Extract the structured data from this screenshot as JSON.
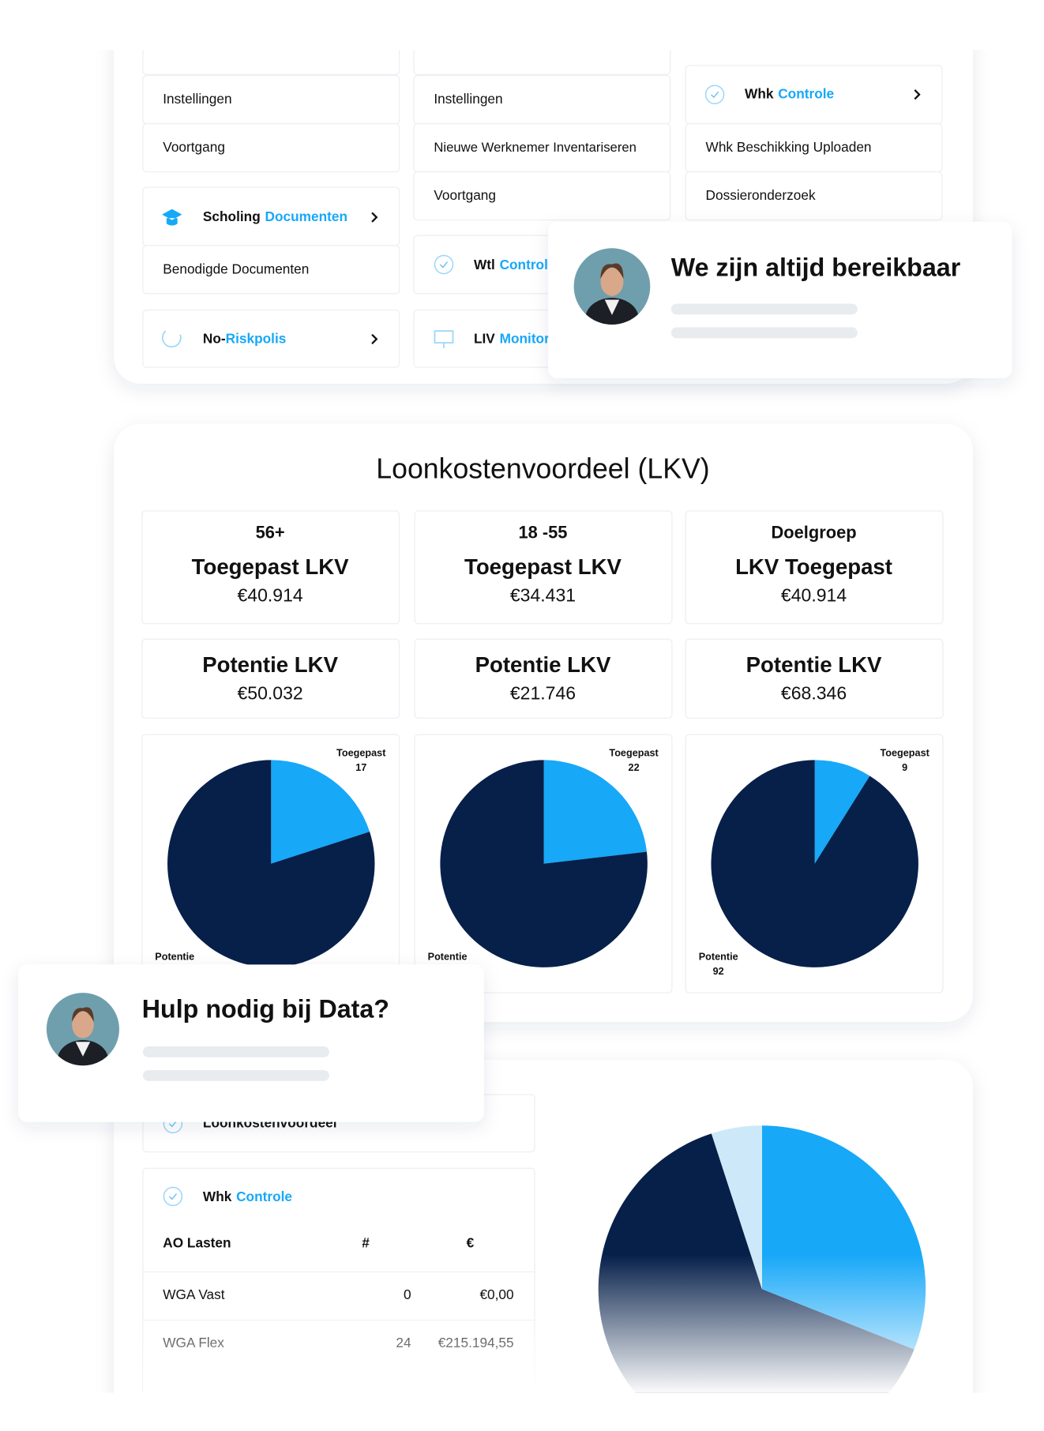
{
  "top": {
    "col1_rows": [
      "Instellingen",
      "Voortgang"
    ],
    "scholing": {
      "bold": "Scholing",
      "accent": "Documenten",
      "rows": [
        "Benodigde Documenten"
      ]
    },
    "noriskpolis": {
      "bold": "No-",
      "accent": "Riskpolis"
    },
    "col2_rows": [
      "Instellingen",
      "Nieuwe Werknemer Inventariseren",
      "Voortgang"
    ],
    "wtl": {
      "bold": "Wtl",
      "accent": "Controle"
    },
    "liv": {
      "bold": "LIV",
      "accent": "Monitor"
    },
    "whk": {
      "bold": "Whk",
      "accent": "Controle",
      "rows": [
        "Whk Beschikking Uploaden",
        "Dossieronderzoek"
      ]
    }
  },
  "support_cards": [
    {
      "title": "We zijn altijd bereikbaar"
    },
    {
      "title": "Hulp nodig bij Data?"
    }
  ],
  "lkv": {
    "title": "Loonkostenvoordeel (LKV)",
    "groups": [
      {
        "label": "56+",
        "applied_title": "Toegepast LKV",
        "applied_value": "€40.914",
        "potential_title": "Potentie LKV",
        "potential_value": "€50.032"
      },
      {
        "label": "18 -55",
        "applied_title": "Toegepast LKV",
        "applied_value": "€34.431",
        "potential_title": "Potentie LKV",
        "potential_value": "€21.746"
      },
      {
        "label": "Doelgroep",
        "applied_title": "LKV Toegepast",
        "applied_value": "€40.914",
        "potential_title": "Potentie LKV",
        "potential_value": "€68.346"
      }
    ]
  },
  "chart_data": [
    {
      "type": "pie",
      "categories": [
        "Toegepast",
        "Potentie"
      ],
      "values": [
        17,
        68
      ],
      "colors": [
        "#17a8f8",
        "#06204a"
      ]
    },
    {
      "type": "pie",
      "categories": [
        "Toegepast",
        "Potentie"
      ],
      "values": [
        22,
        73
      ],
      "colors": [
        "#17a8f8",
        "#06204a"
      ]
    },
    {
      "type": "pie",
      "categories": [
        "Toegepast",
        "Potentie"
      ],
      "values": [
        9,
        92
      ],
      "colors": [
        "#17a8f8",
        "#06204a"
      ]
    },
    {
      "type": "pie",
      "values": [
        31,
        64,
        5
      ],
      "colors": [
        "#17a8f8",
        "#06204a",
        "#cde8f8"
      ]
    }
  ],
  "bottom": {
    "card_title": "Loonkostenvoordeel",
    "whk": {
      "bold": "Whk",
      "accent": "Controle"
    },
    "table": {
      "header": [
        "AO Lasten",
        "#",
        "€"
      ],
      "rows": [
        [
          "WGA Vast",
          "0",
          "€0,00"
        ],
        [
          "WGA Flex",
          "24",
          "€215.194,55"
        ]
      ]
    }
  }
}
